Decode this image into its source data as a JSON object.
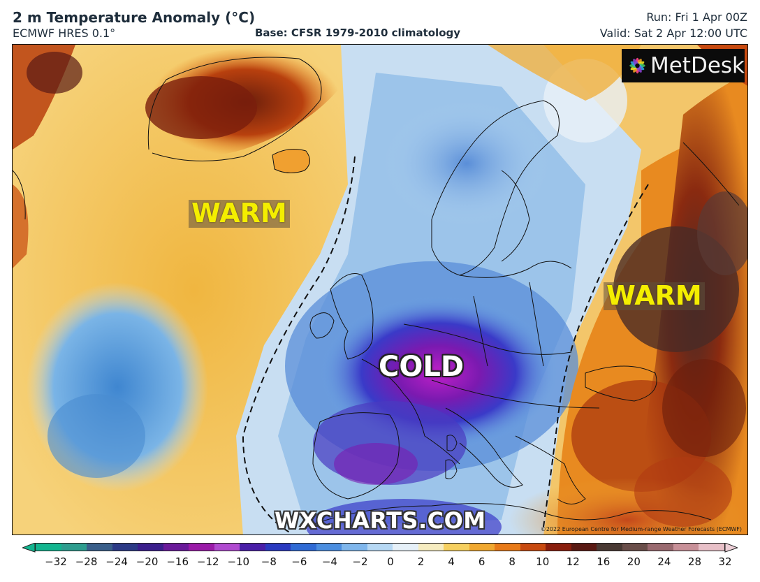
{
  "header": {
    "title": "2 m Temperature Anomaly (°C)",
    "model": "ECMWF HRES 0.1°",
    "base": "Base: CFSR 1979-2010 climatology",
    "run": "Run: Fri 1 Apr 00Z",
    "valid": "Valid: Sat 2 Apr 12:00 UTC"
  },
  "map": {
    "labels": {
      "warm_atlantic": "WARM",
      "warm_east": "WARM",
      "cold_europe": "COLD"
    },
    "logo_text": "MetDesk",
    "watermark": "WXCHARTS.COM",
    "copyright": "©2022 European Centre for Medium-range Weather Forecasts (ECMWF)"
  },
  "colorbar": {
    "ticks": [
      "−32",
      "−28",
      "−24",
      "−20",
      "−16",
      "−12",
      "−10",
      "−8",
      "−6",
      "−4",
      "−2",
      "0",
      "2",
      "4",
      "6",
      "8",
      "10",
      "12",
      "16",
      "20",
      "24",
      "28",
      "32"
    ],
    "colors": [
      "#12b58f",
      "#2e9d8f",
      "#3a5f8a",
      "#2c3a86",
      "#3b1e8c",
      "#6a1a9a",
      "#9a1aa8",
      "#b04ad0",
      "#4a1fa8",
      "#2a3ac0",
      "#2f6ad4",
      "#4b8ee0",
      "#7fb6ec",
      "#b6d8f4",
      "#e6f0f8",
      "#f6ecc0",
      "#f6d060",
      "#f0a830",
      "#e87a18",
      "#c84a10",
      "#8a1e0e",
      "#5a1a14",
      "#4a3a34",
      "#6a4e4a",
      "#9a6a70",
      "#c89098",
      "#e8c0c8"
    ]
  },
  "colors": {
    "warm_text": "#f4ee00",
    "cold_text": "#ffffff",
    "ocean_warm": "#f3c25a",
    "cold_core": "#8a1aa8"
  }
}
